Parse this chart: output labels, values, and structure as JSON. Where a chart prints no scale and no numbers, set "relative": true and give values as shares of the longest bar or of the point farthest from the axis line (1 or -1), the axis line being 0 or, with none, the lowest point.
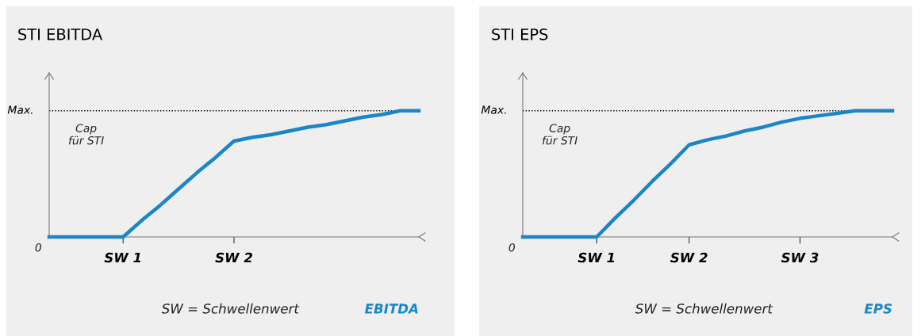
{
  "chart_data": [
    {
      "type": "line",
      "title": "STI EBITDA",
      "xlabel": "EBITDA",
      "relative": true,
      "categories": [
        null,
        null,
        null,
        null,
        "SW 1",
        null,
        null,
        null,
        null,
        null,
        "SW 2",
        null,
        null,
        null,
        null,
        null,
        null,
        null,
        null,
        null,
        null
      ],
      "series": [
        {
          "color": "#1a86c8",
          "values": [
            0,
            0,
            0,
            0,
            0,
            0.13,
            0.25,
            0.38,
            0.51,
            0.63,
            0.76,
            0.79,
            0.81,
            0.84,
            0.87,
            0.89,
            0.92,
            0.95,
            0.97,
            1,
            1
          ]
        }
      ],
      "ref_lines": [
        {
          "axis": "y",
          "value": 1,
          "label": "Max.",
          "line_style": "dotted",
          "color": "#000000"
        }
      ],
      "annotations": [
        "0",
        "Cap\nfür STI",
        "SW = Schwellenwert"
      ],
      "grid": false,
      "legend": false,
      "marker": "none",
      "line_style": "solid"
    },
    {
      "type": "line",
      "title": "STI EPS",
      "xlabel": "EPS",
      "relative": true,
      "categories": [
        null,
        null,
        null,
        null,
        "SW 1",
        null,
        null,
        null,
        null,
        "SW 2",
        null,
        null,
        null,
        null,
        null,
        "SW 3",
        null,
        null,
        null,
        null,
        null
      ],
      "series": [
        {
          "color": "#1a86c8",
          "values": [
            0,
            0,
            0,
            0,
            0,
            0.15,
            0.29,
            0.44,
            0.58,
            0.73,
            0.77,
            0.8,
            0.84,
            0.87,
            0.91,
            0.94,
            0.96,
            0.98,
            1,
            1,
            1
          ]
        }
      ],
      "ref_lines": [
        {
          "axis": "y",
          "value": 1,
          "label": "Max.",
          "line_style": "dotted",
          "color": "#000000"
        }
      ],
      "annotations": [
        "0",
        "Cap\nfür STI",
        "SW = Schwellenwert"
      ],
      "grid": false,
      "legend": false,
      "marker": "none",
      "line_style": "solid"
    }
  ]
}
